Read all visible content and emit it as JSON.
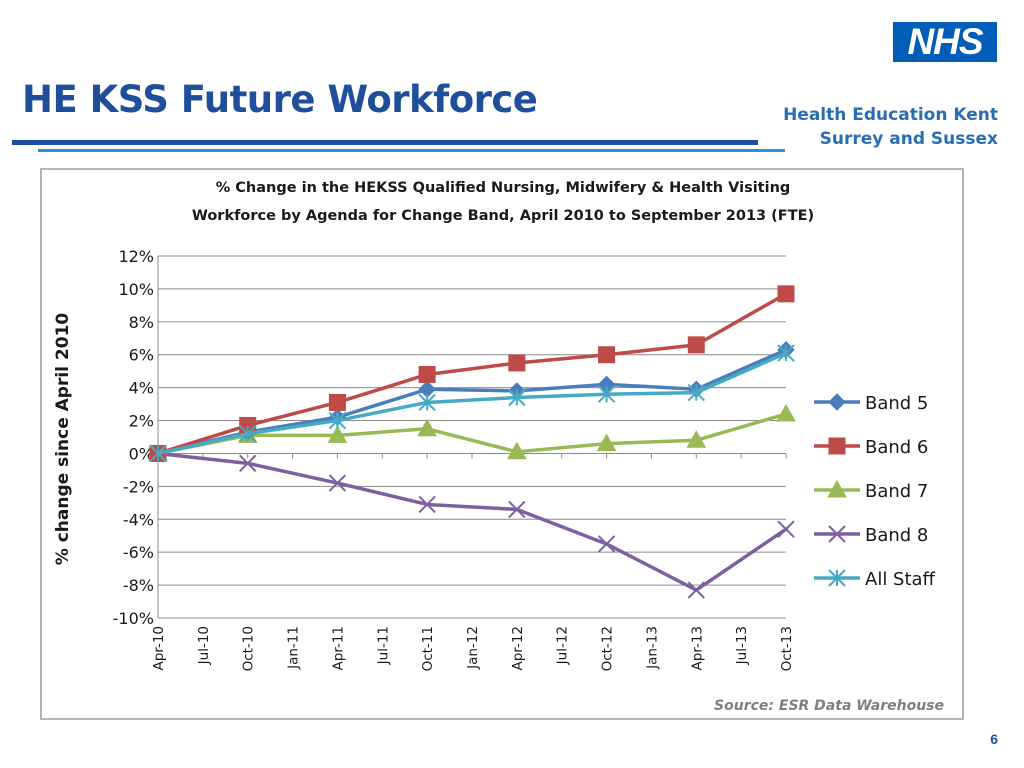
{
  "slide": {
    "title": "HE KSS Future Workforce",
    "logo_text": "NHS",
    "org_line1": "Health Education Kent",
    "org_line2": "Surrey and Sussex",
    "page_number": "6"
  },
  "colors": {
    "title": "#1f4e9a",
    "logo_bg": "#005eb8",
    "org_text": "#2a6db3",
    "rule_dark": "#1f4e9a",
    "rule_light": "#2d8fd5"
  },
  "chart_data": {
    "type": "line",
    "title_line1": "% Change in the HEKSS Qualified Nursing, Midwifery & Health Visiting",
    "title_line2": "Workforce by Agenda for Change Band, April 2010 to September 2013 (FTE)",
    "ylabel": "% change since April 2010",
    "xlabel": "",
    "source": "Source: ESR Data Warehouse",
    "ylim": [
      -10,
      12
    ],
    "yticks": [
      12,
      10,
      8,
      6,
      4,
      2,
      0,
      -2,
      -4,
      -6,
      -8,
      -10
    ],
    "ytick_labels": [
      "12%",
      "10%",
      "8%",
      "6%",
      "4%",
      "2%",
      "0%",
      "-2%",
      "-4%",
      "-6%",
      "-8%",
      "-10%"
    ],
    "x_categories": [
      "Apr-10",
      "Jul-10",
      "Oct-10",
      "Jan-11",
      "Apr-11",
      "Jul-11",
      "Oct-11",
      "Jan-12",
      "Apr-12",
      "Jul-12",
      "Oct-12",
      "Jan-13",
      "Apr-13",
      "Jul-13",
      "Oct-13"
    ],
    "grid": true,
    "legend_position": "right",
    "series": [
      {
        "name": "Band 5",
        "color": "#4a7ebb",
        "marker": "diamond",
        "x": [
          "Apr-10",
          "Oct-10",
          "Apr-11",
          "Oct-11",
          "Apr-12",
          "Oct-12",
          "Apr-13",
          "Oct-13"
        ],
        "values": [
          0,
          1.3,
          2.2,
          3.9,
          3.8,
          4.2,
          3.9,
          6.3
        ]
      },
      {
        "name": "Band 6",
        "color": "#be4b48",
        "marker": "square",
        "x": [
          "Apr-10",
          "Oct-10",
          "Apr-11",
          "Oct-11",
          "Apr-12",
          "Oct-12",
          "Apr-13",
          "Oct-13"
        ],
        "values": [
          0,
          1.7,
          3.1,
          4.8,
          5.5,
          6.0,
          6.6,
          9.7
        ]
      },
      {
        "name": "Band 7",
        "color": "#98b954",
        "marker": "triangle",
        "x": [
          "Apr-10",
          "Oct-10",
          "Apr-11",
          "Oct-11",
          "Apr-12",
          "Oct-12",
          "Apr-13",
          "Oct-13"
        ],
        "values": [
          0,
          1.1,
          1.1,
          1.5,
          0.1,
          0.6,
          0.8,
          2.4
        ]
      },
      {
        "name": "Band 8",
        "color": "#7d60a0",
        "marker": "x",
        "x": [
          "Apr-10",
          "Oct-10",
          "Apr-11",
          "Oct-11",
          "Apr-12",
          "Oct-12",
          "Apr-13",
          "Oct-13"
        ],
        "values": [
          0,
          -0.6,
          -1.8,
          -3.1,
          -3.4,
          -5.5,
          -8.3,
          -4.6
        ]
      },
      {
        "name": "All Staff",
        "color": "#46aac5",
        "marker": "asterisk",
        "x": [
          "Apr-10",
          "Oct-10",
          "Apr-11",
          "Oct-11",
          "Apr-12",
          "Oct-12",
          "Apr-13",
          "Oct-13"
        ],
        "values": [
          0,
          1.2,
          2.0,
          3.1,
          3.4,
          3.6,
          3.7,
          6.1
        ]
      }
    ]
  }
}
